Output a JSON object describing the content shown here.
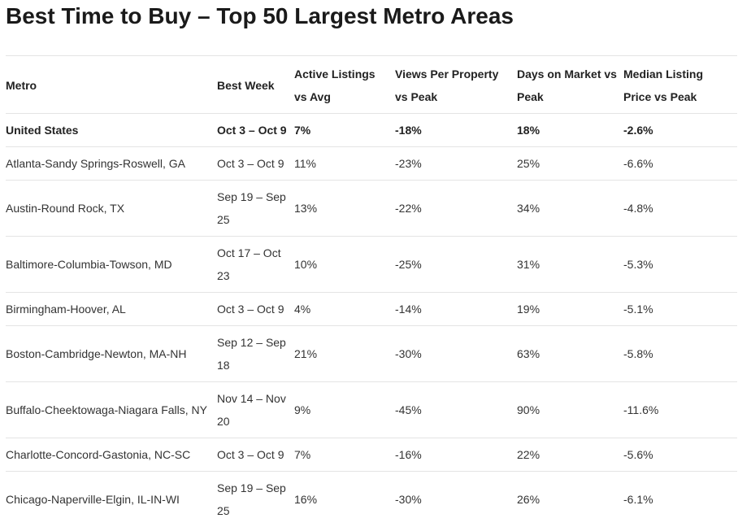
{
  "title": "Best Time to Buy – Top 50 Largest Metro Areas",
  "table": {
    "headers": [
      "Metro",
      "Best Week",
      "Active Listings vs Avg",
      "Views Per Property vs Peak",
      "Days on Market vs Peak",
      "Median Listing Price vs Peak"
    ],
    "rows": [
      [
        "United States",
        "Oct 3 – Oct 9",
        "7%",
        "-18%",
        "18%",
        "-2.6%"
      ],
      [
        "Atlanta-Sandy Springs-Roswell, GA",
        "Oct 3 – Oct 9",
        "11%",
        "-23%",
        "25%",
        "-6.6%"
      ],
      [
        "Austin-Round Rock, TX",
        "Sep 19 – Sep 25",
        "13%",
        "-22%",
        "34%",
        "-4.8%"
      ],
      [
        "Baltimore-Columbia-Towson, MD",
        "Oct 17 – Oct 23",
        "10%",
        "-25%",
        "31%",
        "-5.3%"
      ],
      [
        "Birmingham-Hoover, AL",
        "Oct 3 – Oct 9",
        "4%",
        "-14%",
        "19%",
        "-5.1%"
      ],
      [
        "Boston-Cambridge-Newton, MA-NH",
        "Sep 12 – Sep 18",
        "21%",
        "-30%",
        "63%",
        "-5.8%"
      ],
      [
        "Buffalo-Cheektowaga-Niagara Falls, NY",
        "Nov 14 – Nov 20",
        "9%",
        "-45%",
        "90%",
        "-11.6%"
      ],
      [
        "Charlotte-Concord-Gastonia, NC-SC",
        "Oct 3 – Oct 9",
        "7%",
        "-16%",
        "22%",
        "-5.6%"
      ],
      [
        "Chicago-Naperville-Elgin, IL-IN-WI",
        "Sep 19 – Sep 25",
        "16%",
        "-30%",
        "26%",
        "-6.1%"
      ]
    ]
  }
}
